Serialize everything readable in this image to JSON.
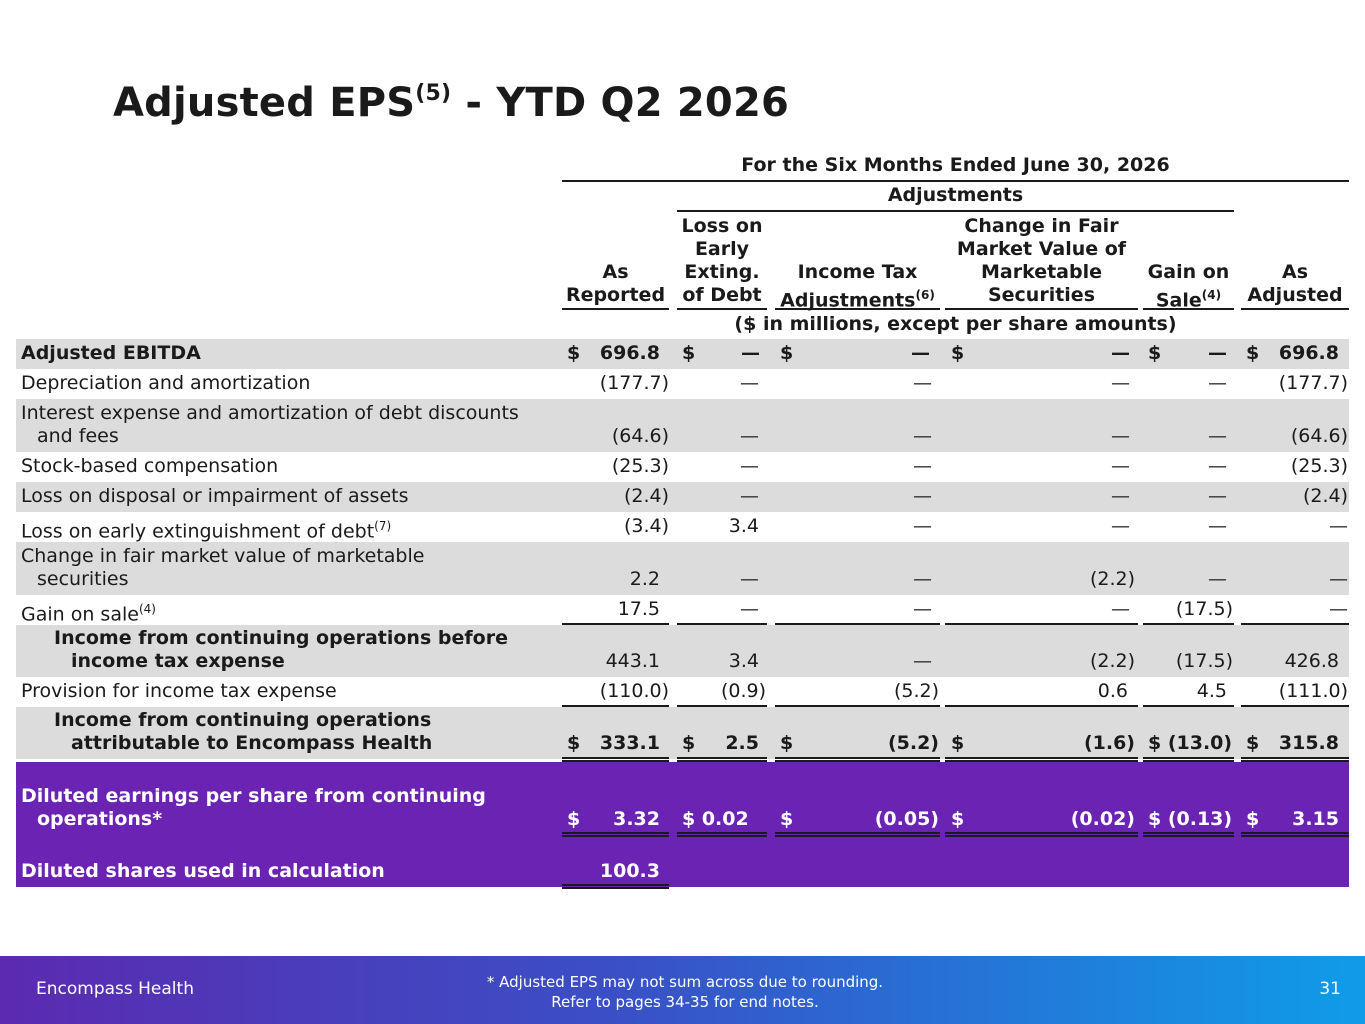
{
  "title": {
    "main": "Adjusted EPS",
    "sup": "(5)",
    "rest": " - YTD Q2 2026"
  },
  "table": {
    "period_header": "For the Six Months Ended June 30, 2026",
    "adjustments_header": "Adjustments",
    "units_header": "($ in millions, except per share amounts)",
    "columns": [
      "As Reported",
      "Loss on Early Exting. of Debt",
      "Income Tax Adjustments(6)",
      "Change in Fair Market Value of Marketable Securities",
      "Gain on Sale(4)",
      "As Adjusted"
    ],
    "col_labels": {
      "as_reported_1": "As",
      "as_reported_2": "Reported",
      "loss_1": "Loss on",
      "loss_2": "Early",
      "loss_3": "Exting.",
      "loss_4": "of Debt",
      "tax_1": "Income Tax",
      "tax_2": "Adjustments",
      "tax_sup": "(6)",
      "fmv_1": "Change in Fair",
      "fmv_2": "Market Value of",
      "fmv_3": "Marketable",
      "fmv_4": "Securities",
      "gain_1": "Gain on",
      "gain_2": "Sale",
      "gain_sup": "(4)",
      "adj_1": "As",
      "adj_2": "Adjusted"
    },
    "rows": [
      {
        "label": "Adjusted EBITDA",
        "values": [
          "$",
          "696.8",
          "$",
          "—",
          "$",
          "—",
          "$",
          "—",
          "$",
          "—",
          "$",
          "696.8"
        ]
      },
      {
        "label": "Depreciation and amortization",
        "values": [
          "(177.7)",
          "—",
          "—",
          "—",
          "—",
          "(177.7)"
        ]
      },
      {
        "label_1": "Interest expense and amortization of debt discounts",
        "label_2": "and fees",
        "values": [
          "(64.6)",
          "—",
          "—",
          "—",
          "—",
          "(64.6)"
        ]
      },
      {
        "label": "Stock-based compensation",
        "values": [
          "(25.3)",
          "—",
          "—",
          "—",
          "—",
          "(25.3)"
        ]
      },
      {
        "label": "Loss on disposal or impairment of assets",
        "values": [
          "(2.4)",
          "—",
          "—",
          "—",
          "—",
          "(2.4)"
        ]
      },
      {
        "label": "Loss on early extinguishment of debt",
        "sup": "(7)",
        "values": [
          "(3.4)",
          "3.4",
          "—",
          "—",
          "—",
          "—"
        ]
      },
      {
        "label_1": "Change in fair market value of marketable",
        "label_2": "securities",
        "values": [
          "2.2",
          "—",
          "—",
          "(2.2)",
          "—",
          "—"
        ]
      },
      {
        "label": "Gain on sale",
        "sup": "(4)",
        "values": [
          "17.5",
          "—",
          "—",
          "—",
          "(17.5)",
          "—"
        ]
      },
      {
        "label_1": "Income from continuing operations before",
        "label_2": "income tax expense",
        "values": [
          "443.1",
          "3.4",
          "—",
          "(2.2)",
          "(17.5)",
          "426.8"
        ]
      },
      {
        "label": "Provision for income tax expense",
        "values": [
          "(110.0)",
          "(0.9)",
          "(5.2)",
          "0.6",
          "4.5",
          "(111.0)"
        ]
      },
      {
        "label_1": "Income from continuing operations",
        "label_2": "attributable to Encompass Health",
        "values": [
          "$",
          "333.1",
          "$",
          "2.5",
          "$",
          "(5.2)",
          "$",
          "(1.6)",
          "$ (13.0)",
          "$",
          "315.8"
        ]
      },
      {
        "label_1": "Diluted earnings per share from continuing",
        "label_2": "operations*",
        "values": [
          "$",
          "3.32",
          "$ 0.02",
          "$",
          "(0.05)",
          "$",
          "(0.02)",
          "$ (0.13)",
          "$",
          "3.15"
        ]
      },
      {
        "label": "Diluted shares used in calculation",
        "values": [
          "100.3"
        ]
      }
    ]
  },
  "footer": {
    "brand": "Encompass Health",
    "note_1": "*  Adjusted EPS may not sum across due to rounding.",
    "note_2": "Refer to pages 34-35 for end notes.",
    "page": "31"
  },
  "colors": {
    "highlight": "#6a23b3",
    "shade": "#dcdcdc",
    "footer_start": "#5b2ab0",
    "footer_end": "#0f9ce8"
  }
}
